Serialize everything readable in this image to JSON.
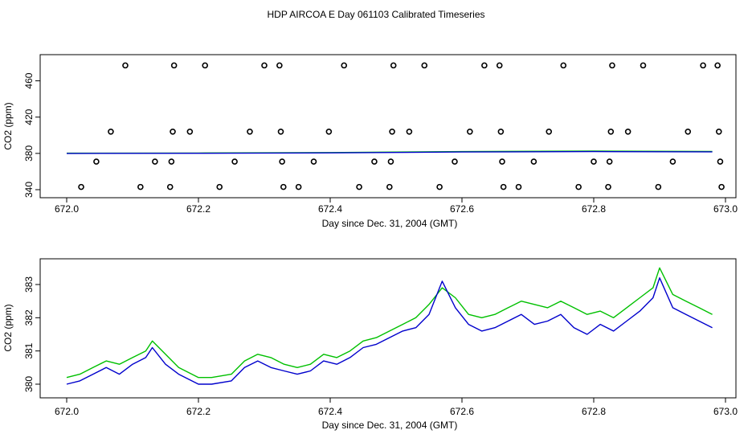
{
  "title": "HDP AIRCOA E  Day 061103  Calibrated Timeseries",
  "colors": {
    "green": "#00c000",
    "blue": "#0000cc",
    "points": "#000000"
  },
  "chart_data": [
    {
      "type": "line",
      "xlabel": "Day since Dec. 31, 2004 (GMT)",
      "ylabel": "CO2 (ppm)",
      "xlim": [
        672.0,
        673.0
      ],
      "ylim": [
        340,
        480
      ],
      "xticks": [
        672.0,
        672.2,
        672.4,
        672.6,
        672.8,
        673.0
      ],
      "xtick_labels": [
        "672.0",
        "672.2",
        "672.4",
        "672.6",
        "672.8",
        "673.0"
      ],
      "yticks": [
        340,
        380,
        420,
        460
      ],
      "ytick_labels": [
        "340",
        "380",
        "420",
        "460"
      ],
      "series": [
        {
          "color": "green",
          "x": [
            672.0,
            672.2,
            672.4,
            672.6,
            672.8,
            672.98
          ],
          "y": [
            380.2,
            380.4,
            380.9,
            382.0,
            382.5,
            382.1
          ]
        },
        {
          "color": "blue",
          "x": [
            672.0,
            672.2,
            672.4,
            672.6,
            672.8,
            672.98
          ],
          "y": [
            380.0,
            380.1,
            380.6,
            381.6,
            382.0,
            381.7
          ]
        }
      ],
      "points": [
        {
          "x": 672.022,
          "y": 343
        },
        {
          "x": 672.045,
          "y": 371
        },
        {
          "x": 672.067,
          "y": 404
        },
        {
          "x": 672.089,
          "y": 477
        },
        {
          "x": 672.112,
          "y": 343
        },
        {
          "x": 672.134,
          "y": 371
        },
        {
          "x": 672.157,
          "y": 343
        },
        {
          "x": 672.159,
          "y": 371
        },
        {
          "x": 672.161,
          "y": 404
        },
        {
          "x": 672.163,
          "y": 477
        },
        {
          "x": 672.187,
          "y": 404
        },
        {
          "x": 672.21,
          "y": 477
        },
        {
          "x": 672.232,
          "y": 343
        },
        {
          "x": 672.255,
          "y": 371
        },
        {
          "x": 672.278,
          "y": 404
        },
        {
          "x": 672.3,
          "y": 477
        },
        {
          "x": 672.323,
          "y": 477
        },
        {
          "x": 672.325,
          "y": 404
        },
        {
          "x": 672.327,
          "y": 371
        },
        {
          "x": 672.329,
          "y": 343
        },
        {
          "x": 672.352,
          "y": 343
        },
        {
          "x": 672.375,
          "y": 371
        },
        {
          "x": 672.398,
          "y": 404
        },
        {
          "x": 672.421,
          "y": 477
        },
        {
          "x": 672.444,
          "y": 343
        },
        {
          "x": 672.467,
          "y": 371
        },
        {
          "x": 672.49,
          "y": 343
        },
        {
          "x": 672.492,
          "y": 371
        },
        {
          "x": 672.494,
          "y": 404
        },
        {
          "x": 672.496,
          "y": 477
        },
        {
          "x": 672.52,
          "y": 404
        },
        {
          "x": 672.543,
          "y": 477
        },
        {
          "x": 672.566,
          "y": 343
        },
        {
          "x": 672.589,
          "y": 371
        },
        {
          "x": 672.612,
          "y": 404
        },
        {
          "x": 672.634,
          "y": 477
        },
        {
          "x": 672.657,
          "y": 477
        },
        {
          "x": 672.659,
          "y": 404
        },
        {
          "x": 672.661,
          "y": 371
        },
        {
          "x": 672.663,
          "y": 343
        },
        {
          "x": 672.686,
          "y": 343
        },
        {
          "x": 672.709,
          "y": 371
        },
        {
          "x": 672.732,
          "y": 404
        },
        {
          "x": 672.754,
          "y": 477
        },
        {
          "x": 672.777,
          "y": 343
        },
        {
          "x": 672.8,
          "y": 371
        },
        {
          "x": 672.822,
          "y": 343
        },
        {
          "x": 672.824,
          "y": 371
        },
        {
          "x": 672.826,
          "y": 404
        },
        {
          "x": 672.828,
          "y": 477
        },
        {
          "x": 672.852,
          "y": 404
        },
        {
          "x": 672.875,
          "y": 477
        },
        {
          "x": 672.898,
          "y": 343
        },
        {
          "x": 672.92,
          "y": 371
        },
        {
          "x": 672.943,
          "y": 404
        },
        {
          "x": 672.966,
          "y": 477
        },
        {
          "x": 672.988,
          "y": 477
        },
        {
          "x": 672.99,
          "y": 404
        },
        {
          "x": 672.992,
          "y": 371
        },
        {
          "x": 672.994,
          "y": 343
        }
      ]
    },
    {
      "type": "line",
      "xlabel": "Day since Dec. 31, 2004 (GMT)",
      "ylabel": "CO2 (ppm)",
      "xlim": [
        672.0,
        673.0
      ],
      "ylim": [
        379.7,
        383.7
      ],
      "xticks": [
        672.0,
        672.2,
        672.4,
        672.6,
        672.8,
        673.0
      ],
      "xtick_labels": [
        "672.0",
        "672.2",
        "672.4",
        "672.6",
        "672.8",
        "673.0"
      ],
      "yticks": [
        380,
        381,
        382,
        383
      ],
      "ytick_labels": [
        "380",
        "381",
        "382",
        "383"
      ],
      "series": [
        {
          "color": "green",
          "x": [
            672.0,
            672.02,
            672.04,
            672.06,
            672.08,
            672.1,
            672.12,
            672.13,
            672.15,
            672.17,
            672.2,
            672.22,
            672.25,
            672.27,
            672.29,
            672.31,
            672.33,
            672.35,
            672.37,
            672.39,
            672.41,
            672.43,
            672.45,
            672.47,
            672.49,
            672.51,
            672.53,
            672.55,
            672.57,
            672.59,
            672.61,
            672.63,
            672.65,
            672.67,
            672.69,
            672.71,
            672.73,
            672.75,
            672.77,
            672.79,
            672.81,
            672.83,
            672.85,
            672.87,
            672.89,
            672.9,
            672.92,
            672.94,
            672.96,
            672.98
          ],
          "y": [
            380.2,
            380.3,
            380.5,
            380.7,
            380.6,
            380.8,
            381.0,
            381.3,
            380.9,
            380.5,
            380.2,
            380.2,
            380.3,
            380.7,
            380.9,
            380.8,
            380.6,
            380.5,
            380.6,
            380.9,
            380.8,
            381.0,
            381.3,
            381.4,
            381.6,
            381.8,
            382.0,
            382.4,
            382.9,
            382.6,
            382.1,
            382.0,
            382.1,
            382.3,
            382.5,
            382.4,
            382.3,
            382.5,
            382.3,
            382.1,
            382.2,
            382.0,
            382.3,
            382.6,
            382.9,
            383.5,
            382.7,
            382.5,
            382.3,
            382.1
          ]
        },
        {
          "color": "blue",
          "x": [
            672.0,
            672.02,
            672.04,
            672.06,
            672.08,
            672.1,
            672.12,
            672.13,
            672.15,
            672.17,
            672.2,
            672.22,
            672.25,
            672.27,
            672.29,
            672.31,
            672.33,
            672.35,
            672.37,
            672.39,
            672.41,
            672.43,
            672.45,
            672.47,
            672.49,
            672.51,
            672.53,
            672.55,
            672.57,
            672.59,
            672.61,
            672.63,
            672.65,
            672.67,
            672.69,
            672.71,
            672.73,
            672.75,
            672.77,
            672.79,
            672.81,
            672.83,
            672.85,
            672.87,
            672.89,
            672.9,
            672.92,
            672.94,
            672.96,
            672.98
          ],
          "y": [
            380.0,
            380.1,
            380.3,
            380.5,
            380.3,
            380.6,
            380.8,
            381.1,
            380.6,
            380.3,
            380.0,
            380.0,
            380.1,
            380.5,
            380.7,
            380.5,
            380.4,
            380.3,
            380.4,
            380.7,
            380.6,
            380.8,
            381.1,
            381.2,
            381.4,
            381.6,
            381.7,
            382.1,
            383.1,
            382.3,
            381.8,
            381.6,
            381.7,
            381.9,
            382.1,
            381.8,
            381.9,
            382.1,
            381.7,
            381.5,
            381.8,
            381.6,
            381.9,
            382.2,
            382.6,
            383.2,
            382.3,
            382.1,
            381.9,
            381.7
          ]
        }
      ]
    }
  ]
}
